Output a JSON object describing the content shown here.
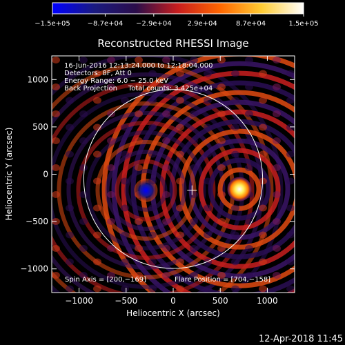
{
  "footer_timestamp": "12-Apr-2018 11:45",
  "colors": {
    "background": "#000000",
    "text": "#ffffff",
    "colorbar_stops": [
      "#0000ff",
      "#1a1a80",
      "#2b0d4a",
      "#c81e1e",
      "#ff6600",
      "#ffcc33",
      "#ffffff"
    ]
  },
  "chart_data": {
    "type": "heatmap",
    "title": "Reconstructed RHESSI Image",
    "xlabel": "Heliocentric X (arcsec)",
    "ylabel": "Heliocentric Y (arcsec)",
    "xlim": [
      -1290,
      1290
    ],
    "ylim": [
      -1250,
      1250
    ],
    "x_ticks": [
      -1000,
      -500,
      0,
      500,
      1000
    ],
    "y_ticks": [
      1000,
      500,
      0,
      -500,
      -1000
    ],
    "x_tick_labels": [
      "−1000",
      "−500",
      "0",
      "500",
      "1000"
    ],
    "y_tick_labels": [
      "1000",
      "500",
      "0",
      "−500",
      "−1000"
    ],
    "colorbar": {
      "range": [
        -150000,
        150000
      ],
      "tick_values": [
        -150000,
        -87000,
        -29000,
        29000,
        87000,
        150000
      ],
      "tick_labels": [
        "−1.5e+05",
        "−8.7e+04",
        "−2.9e+04",
        "2.9e+04",
        "8.7e+04",
        "1.5e+05"
      ]
    },
    "info_text": [
      "16-Jun-2016 12:13:24.000 to 12:18:04.000",
      "Detectors: 8F, Att 0",
      "Energy Range: 6.0 − 25.0 keV",
      "Back Projection     Total counts: 3.425e+04"
    ],
    "spin_axis_text": "Spin Axis = [200,−169]",
    "flare_position_text": "Flare Position = [704,−158]",
    "spin_axis": [
      200,
      -169
    ],
    "flare_position": [
      704,
      -158
    ],
    "negative_source": [
      -290,
      -170
    ],
    "solar_limb_radius": 950,
    "solar_limb_center": [
      0,
      -50
    ]
  }
}
